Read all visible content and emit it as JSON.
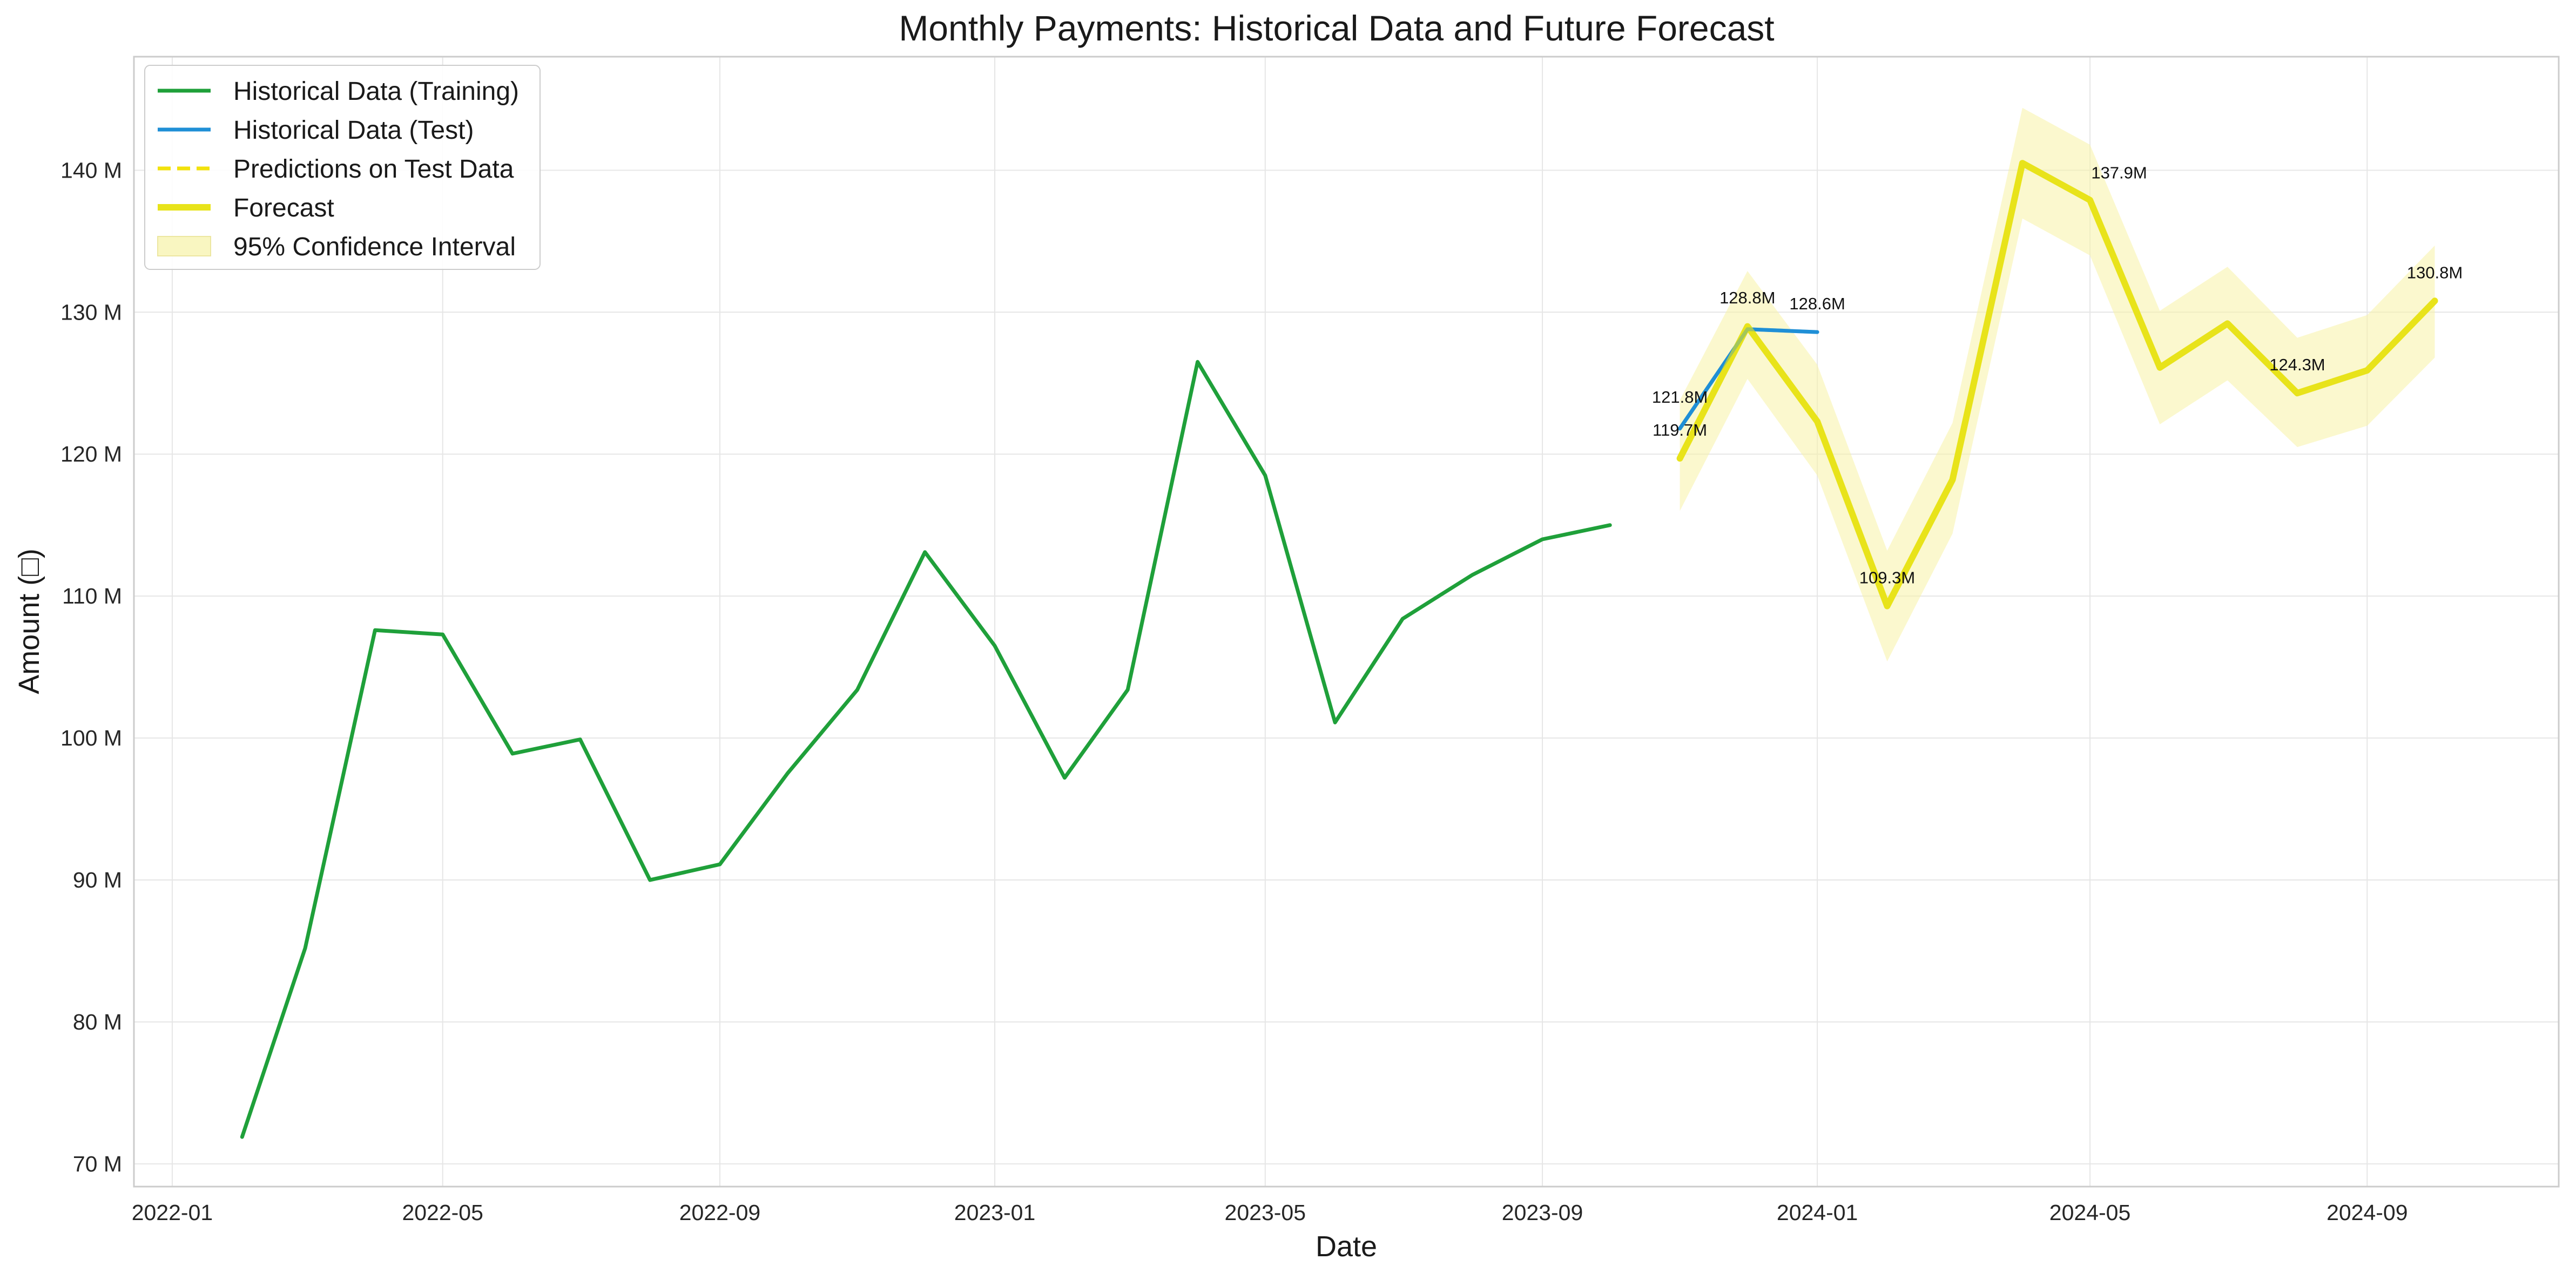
{
  "chart_data": {
    "type": "line",
    "title": "Monthly Payments: Historical Data and Future Forecast",
    "xlabel": "Date",
    "ylabel": "Amount (□)",
    "xlim": [
      "2021-12-15",
      "2024-11-25"
    ],
    "ylim": [
      68.4,
      148.0
    ],
    "x_ticks": [
      "2022-01",
      "2022-05",
      "2022-09",
      "2023-01",
      "2023-05",
      "2023-09",
      "2024-01",
      "2024-05",
      "2024-09"
    ],
    "y_ticks": [
      70,
      80,
      90,
      100,
      110,
      120,
      130,
      140
    ],
    "y_tick_labels": [
      "70 M",
      "80 M",
      "90 M",
      "100 M",
      "110 M",
      "120 M",
      "130 M",
      "140 M"
    ],
    "grid": true,
    "legend_position": "top-left",
    "series": [
      {
        "name": "Historical Data (Training)",
        "color": "#1fa03a",
        "style": "solid",
        "x": [
          "2022-02-01",
          "2022-03-01",
          "2022-04-01",
          "2022-05-01",
          "2022-06-01",
          "2022-07-01",
          "2022-08-01",
          "2022-09-01",
          "2022-10-01",
          "2022-11-01",
          "2022-12-01",
          "2023-01-01",
          "2023-02-01",
          "2023-03-01",
          "2023-04-01",
          "2023-05-01",
          "2023-06-01",
          "2023-07-01",
          "2023-08-01",
          "2023-09-01",
          "2023-10-01"
        ],
        "y": [
          71.9,
          85.2,
          107.6,
          107.3,
          98.9,
          99.9,
          90.0,
          91.1,
          97.5,
          103.4,
          113.1,
          106.5,
          97.2,
          103.4,
          126.5,
          118.5,
          101.1,
          108.4,
          111.5,
          114.0,
          115.0
        ]
      },
      {
        "name": "Historical Data (Test)",
        "color": "#1f8fd6",
        "style": "solid",
        "x": [
          "2023-11-01",
          "2023-12-01",
          "2024-01-01"
        ],
        "y": [
          121.8,
          128.8,
          128.6
        ]
      },
      {
        "name": "Predictions on Test Data",
        "color": "#f2e20c",
        "style": "dashed",
        "x": [
          "2023-11-01",
          "2023-12-01",
          "2024-01-01"
        ],
        "y": [
          119.7,
          129.0,
          122.3
        ]
      },
      {
        "name": "Forecast",
        "color": "#e8e31a",
        "style": "solid",
        "x": [
          "2023-11-01",
          "2023-12-01",
          "2024-01-01",
          "2024-02-01",
          "2024-03-01",
          "2024-04-01",
          "2024-05-01",
          "2024-06-01",
          "2024-07-01",
          "2024-08-01",
          "2024-09-01",
          "2024-10-01"
        ],
        "y": [
          119.7,
          129.0,
          122.3,
          109.3,
          118.2,
          140.5,
          137.9,
          126.1,
          129.2,
          124.3,
          125.9,
          130.8
        ]
      },
      {
        "name": "95% Confidence Interval",
        "color": "#f7f2a6",
        "type": "band",
        "x": [
          "2023-11-01",
          "2023-12-01",
          "2024-01-01",
          "2024-02-01",
          "2024-03-01",
          "2024-04-01",
          "2024-05-01",
          "2024-06-01",
          "2024-07-01",
          "2024-08-01",
          "2024-09-01",
          "2024-10-01"
        ],
        "lower": [
          116.0,
          125.3,
          118.5,
          105.4,
          114.4,
          136.6,
          134.0,
          122.1,
          125.2,
          120.5,
          122.0,
          126.8
        ],
        "upper": [
          123.8,
          132.9,
          126.3,
          113.2,
          122.2,
          144.4,
          141.8,
          130.1,
          133.2,
          128.2,
          129.8,
          134.7
        ]
      }
    ],
    "annotations": [
      {
        "text": "121.8M",
        "x": "2023-11-01",
        "y": 121.8,
        "pos": "above"
      },
      {
        "text": "119.7M",
        "x": "2023-11-01",
        "y": 119.7,
        "pos": "above"
      },
      {
        "text": "128.8M",
        "x": "2023-12-01",
        "y": 128.8,
        "pos": "above"
      },
      {
        "text": "128.6M",
        "x": "2024-01-01",
        "y": 128.6,
        "pos": "above"
      },
      {
        "text": "109.3M",
        "x": "2024-02-01",
        "y": 109.3,
        "pos": "above"
      },
      {
        "text": "137.9M",
        "x": "2024-05-01",
        "y": 137.9,
        "pos": "above"
      },
      {
        "text": "124.3M",
        "x": "2024-08-01",
        "y": 124.3,
        "pos": "above"
      },
      {
        "text": "130.8M",
        "x": "2024-10-01",
        "y": 130.8,
        "pos": "above"
      }
    ],
    "colors": {
      "training": "#1fa03a",
      "test": "#1f8fd6",
      "prediction": "#f2e20c",
      "forecast": "#e8e31a",
      "confidence": "#f7f2a6",
      "grid": "#e6e6e6",
      "frame": "#cccccc"
    }
  }
}
